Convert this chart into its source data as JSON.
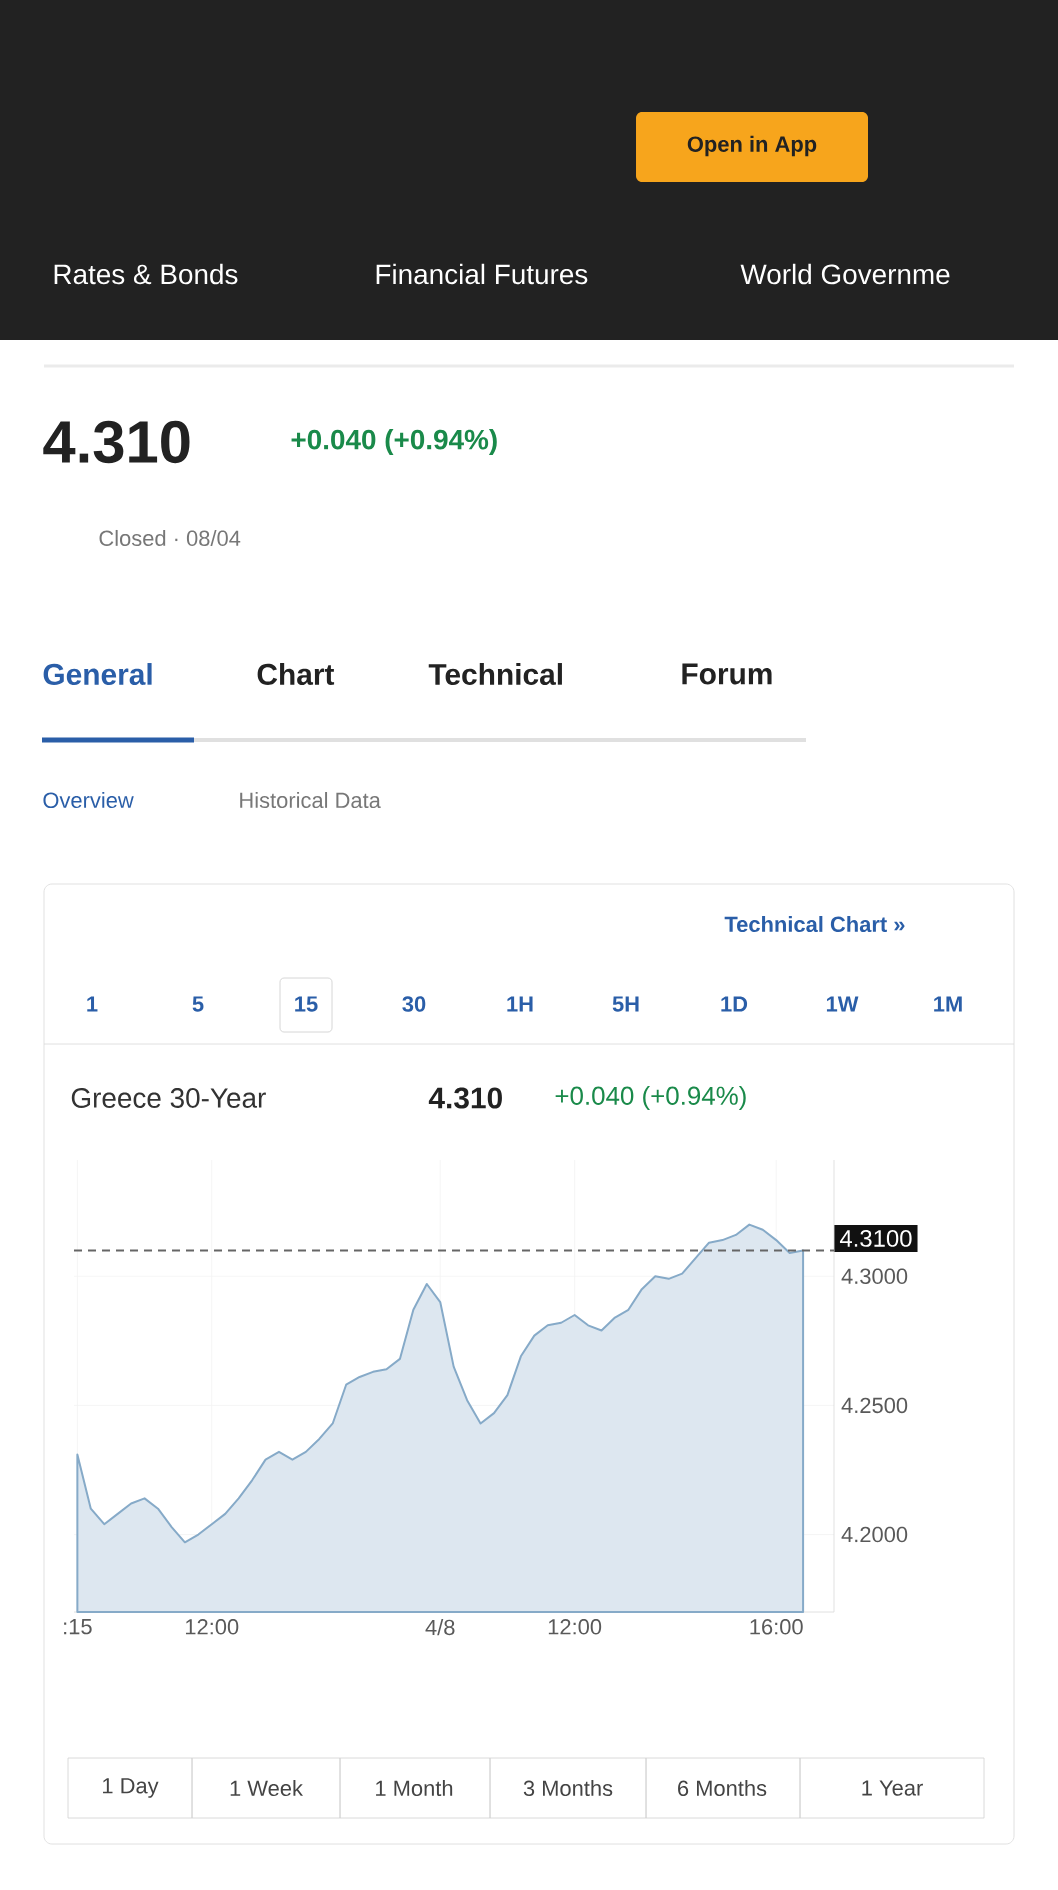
{
  "chart_data": {
    "type": "area",
    "title": "Greece 30-Year",
    "annotations": [
      "Open in App",
      "Rates & Bonds",
      "Financial Futures",
      "World Governme",
      "4.310",
      "+0.040 (+0.94%)",
      "Closed · 08/04",
      "General",
      "Chart",
      "Technical",
      "Forum",
      "Overview",
      "Historical Data",
      "Technical Chart »",
      "1",
      "5",
      "15",
      "30",
      "1H",
      "5H",
      "1D",
      "1W",
      "1M",
      "4.310",
      "+0.040 (+0.94%)",
      "1 Day",
      "1 Week",
      "1 Month",
      "3 Months",
      "6 Months",
      "1 Year"
    ],
    "categories": [
      ":15",
      null,
      null,
      null,
      null,
      null,
      null,
      null,
      null,
      null,
      "12:00",
      null,
      null,
      null,
      null,
      null,
      null,
      null,
      null,
      null,
      null,
      null,
      null,
      null,
      null,
      null,
      null,
      "4/8",
      null,
      null,
      null,
      null,
      null,
      null,
      null,
      null,
      null,
      "12:00",
      null,
      null,
      null,
      null,
      null,
      null,
      null,
      null,
      null,
      null,
      null,
      null,
      null,
      null,
      "16:00",
      null,
      null
    ],
    "series": [
      {
        "color": "#86aac8",
        "values": [
          4.231,
          4.21,
          4.204,
          4.208,
          4.212,
          4.214,
          4.21,
          4.203,
          4.197,
          4.2,
          4.204,
          4.208,
          4.214,
          4.221,
          4.229,
          4.232,
          4.229,
          4.232,
          4.237,
          4.243,
          4.258,
          4.261,
          4.263,
          4.264,
          4.268,
          4.287,
          4.297,
          4.29,
          4.265,
          4.252,
          4.243,
          4.247,
          4.254,
          4.269,
          4.277,
          4.281,
          4.282,
          4.285,
          4.281,
          4.279,
          4.284,
          4.287,
          4.295,
          4.3,
          4.299,
          4.301,
          4.307,
          4.313,
          4.314,
          4.316,
          4.32,
          4.318,
          4.314,
          4.309,
          4.31
        ]
      }
    ],
    "ylim": [
      4.17,
      4.345
    ],
    "yticks": [
      {
        "value": 4.2,
        "label": "4.2000"
      },
      {
        "value": 4.25,
        "label": "4.2500"
      },
      {
        "value": 4.3,
        "label": "4.3000"
      }
    ],
    "ref_lines": [
      {
        "axis": "y",
        "value": 4.31,
        "label": "4.3100",
        "color": "#666666",
        "line_style": "dashed"
      }
    ],
    "grid": true
  }
}
